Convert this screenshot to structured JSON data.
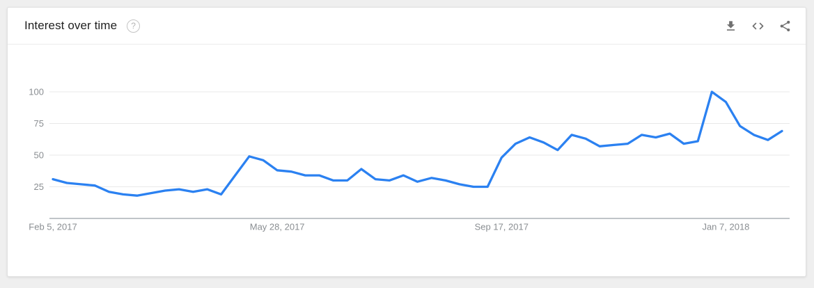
{
  "header": {
    "title": "Interest over time",
    "help_icon": "question-mark-circle-icon",
    "toolbar_icons": [
      "download-icon",
      "embed-code-icon",
      "share-icon"
    ]
  },
  "colors": {
    "line_blue": "#2b81f1",
    "grid_gray": "#e8e8e8",
    "axis_gray": "#9aa0a6",
    "tick_label_gray": "#8a8e92",
    "title_dark": "#212121",
    "icon_gray": "#707070",
    "card_background": "#ffffff",
    "page_background": "#efefef"
  },
  "chart_data": {
    "type": "line",
    "title": "Interest over time",
    "x": [
      "Feb 5, 2017",
      "Feb 12, 2017",
      "Feb 19, 2017",
      "Feb 26, 2017",
      "Mar 5, 2017",
      "Mar 12, 2017",
      "Mar 19, 2017",
      "Mar 26, 2017",
      "Apr 2, 2017",
      "Apr 9, 2017",
      "Apr 16, 2017",
      "Apr 23, 2017",
      "Apr 30, 2017",
      "May 7, 2017",
      "May 14, 2017",
      "May 21, 2017",
      "May 28, 2017",
      "Jun 4, 2017",
      "Jun 11, 2017",
      "Jun 18, 2017",
      "Jun 25, 2017",
      "Jul 2, 2017",
      "Jul 9, 2017",
      "Jul 16, 2017",
      "Jul 23, 2017",
      "Jul 30, 2017",
      "Aug 6, 2017",
      "Aug 13, 2017",
      "Aug 20, 2017",
      "Aug 27, 2017",
      "Sep 3, 2017",
      "Sep 10, 2017",
      "Sep 17, 2017",
      "Sep 24, 2017",
      "Oct 1, 2017",
      "Oct 8, 2017",
      "Oct 15, 2017",
      "Oct 22, 2017",
      "Oct 29, 2017",
      "Nov 5, 2017",
      "Nov 12, 2017",
      "Nov 19, 2017",
      "Nov 26, 2017",
      "Dec 3, 2017",
      "Dec 10, 2017",
      "Dec 17, 2017",
      "Dec 24, 2017",
      "Dec 31, 2017",
      "Jan 7, 2018",
      "Jan 14, 2018",
      "Jan 21, 2018",
      "Jan 28, 2018",
      "Feb 4, 2018"
    ],
    "values": [
      31,
      28,
      27,
      26,
      21,
      19,
      18,
      20,
      22,
      23,
      21,
      23,
      19,
      34,
      49,
      46,
      38,
      37,
      34,
      34,
      30,
      30,
      39,
      31,
      30,
      34,
      29,
      32,
      30,
      27,
      25,
      25,
      48,
      59,
      64,
      60,
      54,
      66,
      63,
      57,
      58,
      59,
      66,
      64,
      67,
      59,
      61,
      100,
      92,
      73,
      66,
      62,
      69
    ],
    "xticks": [
      "Feb 5, 2017",
      "May 28, 2017",
      "Sep 17, 2017",
      "Jan 7, 2018"
    ],
    "xtick_indices": [
      0,
      16,
      32,
      48
    ],
    "yticks": [
      25,
      50,
      75,
      100
    ],
    "ylim": [
      0,
      100
    ],
    "grid": true,
    "legend": false,
    "line_color": "#2b81f1"
  }
}
